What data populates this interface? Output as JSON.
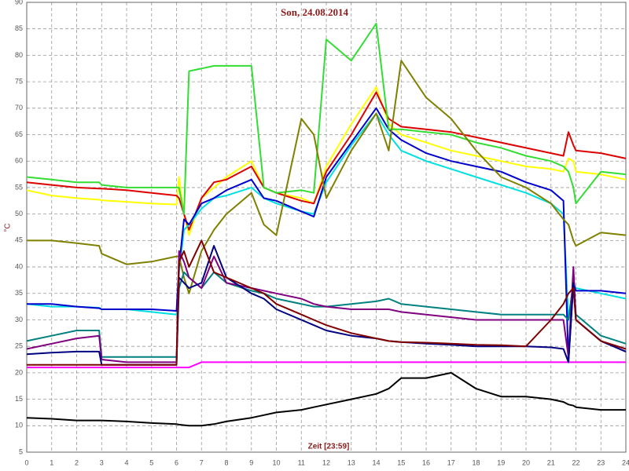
{
  "chart_data": {
    "type": "line",
    "title": "Son, 24.08.2014",
    "y_label": "°C",
    "x_label": "Zeit [23:59]",
    "xlim": [
      0,
      24
    ],
    "xticks": [
      0,
      1,
      2,
      3,
      4,
      5,
      6,
      7,
      8,
      9,
      10,
      11,
      12,
      13,
      14,
      15,
      16,
      17,
      18,
      19,
      20,
      21,
      22,
      23,
      24
    ],
    "ylim": [
      5,
      90
    ],
    "yticks": [
      5,
      10,
      15,
      20,
      25,
      30,
      35,
      40,
      45,
      50,
      55,
      60,
      65,
      70,
      75,
      80,
      85,
      90
    ],
    "grid": true,
    "x": [
      0,
      1,
      2,
      2.9,
      3,
      4,
      5,
      6,
      6.1,
      6.3,
      6.5,
      7,
      7.5,
      8,
      9,
      9.5,
      10,
      11,
      11.5,
      12,
      13,
      14,
      14.5,
      15,
      16,
      17,
      18,
      19,
      20,
      21,
      21.5,
      21.7,
      21.9,
      22,
      23,
      24
    ],
    "series": [
      {
        "color": "#000000",
        "values": [
          11.5,
          11.3,
          11,
          11,
          11,
          10.8,
          10.5,
          10.3,
          10.2,
          10.1,
          10,
          10,
          10.3,
          10.8,
          11.5,
          12,
          12.5,
          13,
          13.5,
          14,
          15,
          16,
          17,
          19,
          19,
          20,
          17,
          15.5,
          15.5,
          15,
          14.5,
          14,
          13.8,
          13.5,
          13,
          13
        ]
      },
      {
        "color": "#ff00ff",
        "values": [
          21,
          21,
          21,
          21,
          21,
          21,
          21,
          21,
          21,
          21,
          21,
          22,
          22,
          22,
          22,
          22,
          22,
          22,
          22,
          22,
          22,
          22,
          22,
          22,
          22,
          22,
          22,
          22,
          22,
          22,
          22,
          22,
          22,
          22,
          22,
          22
        ]
      },
      {
        "color": "#ffff00",
        "values": [
          54.5,
          53.5,
          53,
          52.7,
          52.6,
          52.3,
          52,
          51.8,
          57,
          50,
          46,
          53,
          55,
          57,
          60,
          55,
          54,
          53,
          52,
          59,
          67,
          74,
          67,
          65,
          63.5,
          62,
          61,
          60,
          59,
          58.5,
          58,
          60.5,
          60,
          58,
          57.5,
          56.5
        ]
      },
      {
        "color": "#dd0000",
        "values": [
          56,
          55.5,
          55,
          54.8,
          54.8,
          54.5,
          54,
          53.5,
          53,
          50,
          47,
          53,
          56,
          56.5,
          59,
          55,
          54,
          52.5,
          52,
          58,
          65,
          73,
          68,
          66.5,
          66,
          65.5,
          64.5,
          63.5,
          62.5,
          61.5,
          61,
          65.5,
          63,
          62,
          61.5,
          60.5
        ]
      },
      {
        "color": "#00e0e0",
        "values": [
          33,
          32.5,
          32.5,
          32.3,
          32,
          32,
          31.5,
          31,
          39,
          47,
          48,
          51,
          53,
          53.5,
          55,
          53,
          52,
          50.5,
          50,
          56,
          63,
          69,
          65,
          62,
          60,
          58.5,
          57,
          55.5,
          54,
          52,
          50,
          30,
          37,
          36,
          35,
          34
        ]
      },
      {
        "color": "#0000cc",
        "values": [
          33,
          33,
          32.5,
          32.2,
          32,
          32,
          32,
          31.7,
          40,
          49,
          48,
          52,
          53,
          54.5,
          56.5,
          53,
          52.5,
          50.5,
          49.5,
          57,
          63.5,
          70,
          66,
          64,
          61.5,
          60,
          59,
          58,
          56,
          54.5,
          52.5,
          22,
          37,
          35.5,
          35.5,
          35
        ]
      },
      {
        "color": "#33dd33",
        "values": [
          57,
          56.5,
          56,
          56,
          55.5,
          55,
          55,
          55,
          55,
          50,
          77,
          77.5,
          78,
          78,
          78,
          55,
          54,
          54.5,
          54,
          83,
          79,
          86,
          66,
          66,
          65.5,
          65,
          63.5,
          62.5,
          61,
          60,
          59,
          58,
          55,
          52,
          58,
          57.5
        ]
      },
      {
        "color": "#808000",
        "values": [
          45,
          45,
          44.5,
          44,
          42.5,
          40.5,
          41,
          42,
          42,
          38,
          35,
          43,
          47,
          50,
          54,
          48,
          46,
          68,
          65,
          53,
          62,
          69,
          62,
          79,
          72,
          68,
          62,
          57,
          55,
          52,
          49,
          48,
          45,
          44,
          46.5,
          46
        ]
      },
      {
        "color": "#008080",
        "values": [
          26,
          27,
          28,
          28,
          23,
          23,
          23,
          23,
          36,
          39,
          38,
          36,
          39,
          37,
          35.5,
          35,
          34,
          33,
          32.5,
          32.5,
          33,
          33.5,
          34,
          33,
          32.5,
          32,
          31.5,
          31,
          31,
          31,
          31,
          30,
          37,
          31,
          27,
          25.5
        ]
      },
      {
        "color": "#800080",
        "values": [
          24.5,
          25.5,
          26.5,
          27,
          22.5,
          22,
          22,
          22,
          43,
          41,
          38,
          36,
          42,
          37,
          36,
          35.5,
          35,
          34,
          33,
          32.5,
          32,
          32,
          32,
          31.5,
          31,
          30.5,
          30,
          30,
          30,
          30,
          30,
          23,
          40,
          30,
          26,
          24
        ]
      },
      {
        "color": "#000080",
        "values": [
          23.5,
          23.8,
          24,
          24,
          21.5,
          21.5,
          21.5,
          21.5,
          38,
          37,
          36,
          37,
          44,
          38,
          35,
          34,
          32,
          30,
          29,
          28,
          27,
          26.5,
          26,
          25.8,
          25.5,
          25.3,
          25,
          25,
          25,
          24.8,
          24.5,
          22,
          37,
          30,
          26,
          24
        ]
      },
      {
        "color": "#800000",
        "values": [
          21.5,
          21.5,
          21.5,
          21.5,
          21.5,
          21.5,
          21.5,
          21.5,
          41,
          43,
          40,
          45,
          39,
          38,
          36,
          35,
          33,
          31,
          30,
          29,
          27.5,
          26.5,
          26,
          25.8,
          25.7,
          25.5,
          25.3,
          25.2,
          25,
          30,
          33,
          35,
          36,
          30,
          26,
          24.5
        ]
      }
    ]
  }
}
